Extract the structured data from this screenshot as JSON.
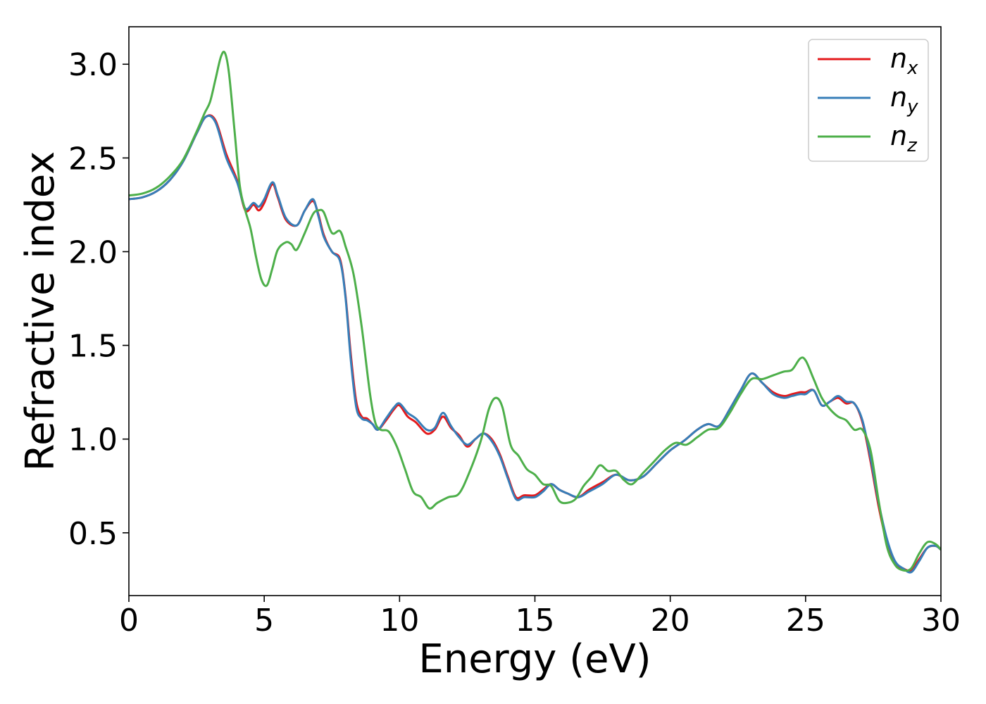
{
  "chart_data": {
    "type": "line",
    "xlabel": "Energy (eV)",
    "ylabel": "Refractive index",
    "xlim": [
      0,
      30
    ],
    "ylim": [
      0.165,
      3.2
    ],
    "xticks": [
      0,
      5,
      10,
      15,
      20,
      25,
      30
    ],
    "yticks": [
      0.5,
      1.0,
      1.5,
      2.0,
      2.5,
      3.0
    ],
    "xtick_labels": [
      "0",
      "5",
      "10",
      "15",
      "20",
      "25",
      "30"
    ],
    "ytick_labels": [
      "0.5",
      "1.0",
      "1.5",
      "2.0",
      "2.5",
      "3.0"
    ],
    "grid": false,
    "legend_position": "top-right",
    "series": [
      {
        "name": "n_x",
        "legend_main": "n",
        "legend_sub": "x",
        "color": "#e41a1c",
        "x": [
          0,
          0.5,
          1.0,
          1.5,
          2.0,
          2.5,
          2.85,
          3.2,
          3.6,
          4.0,
          4.3,
          4.6,
          4.8,
          5.0,
          5.3,
          5.5,
          5.8,
          6.2,
          6.5,
          6.8,
          7.0,
          7.2,
          7.5,
          7.8,
          8.0,
          8.2,
          8.4,
          8.6,
          8.8,
          9.0,
          9.2,
          9.5,
          9.8,
          10.0,
          10.3,
          10.6,
          11.0,
          11.3,
          11.6,
          11.9,
          12.2,
          12.5,
          12.8,
          13.1,
          13.4,
          13.7,
          14.0,
          14.3,
          14.6,
          15.0,
          15.3,
          15.6,
          15.9,
          16.2,
          16.6,
          17.0,
          17.5,
          18.0,
          18.5,
          19.0,
          19.5,
          20.0,
          20.5,
          21.0,
          21.4,
          21.8,
          22.2,
          22.6,
          23.0,
          23.4,
          23.8,
          24.2,
          24.5,
          24.8,
          25.0,
          25.3,
          25.6,
          25.9,
          26.2,
          26.5,
          26.8,
          27.1,
          27.4,
          27.7,
          28.0,
          28.3,
          28.6,
          28.9,
          29.2,
          29.5,
          29.8,
          30.0
        ],
        "y": [
          2.28,
          2.29,
          2.32,
          2.38,
          2.48,
          2.63,
          2.72,
          2.7,
          2.52,
          2.38,
          2.22,
          2.25,
          2.22,
          2.26,
          2.36,
          2.29,
          2.17,
          2.14,
          2.22,
          2.27,
          2.2,
          2.09,
          2.0,
          1.96,
          1.77,
          1.45,
          1.2,
          1.12,
          1.11,
          1.08,
          1.05,
          1.1,
          1.16,
          1.18,
          1.12,
          1.09,
          1.03,
          1.05,
          1.12,
          1.06,
          1.02,
          0.96,
          1.0,
          1.03,
          1.0,
          0.92,
          0.8,
          0.69,
          0.7,
          0.7,
          0.73,
          0.76,
          0.73,
          0.71,
          0.69,
          0.73,
          0.77,
          0.81,
          0.78,
          0.8,
          0.87,
          0.94,
          0.99,
          1.05,
          1.08,
          1.07,
          1.16,
          1.26,
          1.35,
          1.3,
          1.25,
          1.23,
          1.24,
          1.25,
          1.25,
          1.26,
          1.18,
          1.2,
          1.22,
          1.19,
          1.19,
          1.09,
          0.88,
          0.64,
          0.45,
          0.34,
          0.31,
          0.3,
          0.36,
          0.42,
          0.43,
          0.41
        ]
      },
      {
        "name": "n_y",
        "legend_main": "n",
        "legend_sub": "y",
        "color": "#377eb8",
        "x": [
          0,
          0.5,
          1.0,
          1.5,
          2.0,
          2.5,
          2.85,
          3.2,
          3.6,
          4.0,
          4.3,
          4.6,
          4.8,
          5.0,
          5.3,
          5.5,
          5.8,
          6.2,
          6.5,
          6.8,
          7.0,
          7.2,
          7.5,
          7.8,
          8.0,
          8.2,
          8.4,
          8.6,
          8.8,
          9.0,
          9.2,
          9.5,
          9.8,
          10.0,
          10.3,
          10.6,
          11.0,
          11.3,
          11.6,
          11.9,
          12.2,
          12.5,
          12.8,
          13.1,
          13.4,
          13.7,
          14.0,
          14.3,
          14.6,
          15.0,
          15.3,
          15.6,
          15.9,
          16.2,
          16.6,
          17.0,
          17.5,
          18.0,
          18.5,
          19.0,
          19.5,
          20.0,
          20.5,
          21.0,
          21.4,
          21.8,
          22.2,
          22.6,
          23.0,
          23.4,
          23.8,
          24.2,
          24.5,
          24.8,
          25.0,
          25.3,
          25.6,
          25.9,
          26.2,
          26.5,
          26.8,
          27.1,
          27.4,
          27.7,
          28.0,
          28.3,
          28.6,
          28.9,
          29.2,
          29.5,
          29.8,
          30.0
        ],
        "y": [
          2.28,
          2.29,
          2.32,
          2.38,
          2.48,
          2.63,
          2.72,
          2.69,
          2.5,
          2.37,
          2.23,
          2.26,
          2.24,
          2.28,
          2.37,
          2.3,
          2.18,
          2.14,
          2.22,
          2.28,
          2.19,
          2.08,
          2.0,
          1.95,
          1.76,
          1.42,
          1.17,
          1.11,
          1.1,
          1.08,
          1.05,
          1.11,
          1.17,
          1.19,
          1.14,
          1.11,
          1.05,
          1.06,
          1.14,
          1.07,
          1.01,
          0.97,
          1.0,
          1.03,
          0.99,
          0.91,
          0.79,
          0.68,
          0.69,
          0.69,
          0.72,
          0.76,
          0.73,
          0.71,
          0.69,
          0.72,
          0.76,
          0.81,
          0.78,
          0.8,
          0.87,
          0.94,
          0.99,
          1.05,
          1.08,
          1.07,
          1.16,
          1.26,
          1.35,
          1.3,
          1.24,
          1.22,
          1.23,
          1.24,
          1.24,
          1.26,
          1.18,
          1.2,
          1.23,
          1.2,
          1.19,
          1.1,
          0.9,
          0.66,
          0.47,
          0.35,
          0.31,
          0.29,
          0.35,
          0.42,
          0.43,
          0.41
        ]
      },
      {
        "name": "n_z",
        "legend_main": "n",
        "legend_sub": "z",
        "color": "#4daf4a",
        "x": [
          0,
          0.5,
          1.0,
          1.5,
          2.0,
          2.5,
          2.8,
          3.0,
          3.2,
          3.4,
          3.55,
          3.7,
          3.9,
          4.1,
          4.3,
          4.5,
          4.7,
          4.9,
          5.1,
          5.3,
          5.5,
          5.8,
          6.0,
          6.2,
          6.5,
          6.8,
          7.0,
          7.2,
          7.5,
          7.8,
          8.0,
          8.3,
          8.6,
          8.9,
          9.1,
          9.3,
          9.6,
          9.9,
          10.2,
          10.5,
          10.8,
          11.1,
          11.4,
          11.8,
          12.2,
          12.6,
          13.0,
          13.3,
          13.55,
          13.8,
          14.1,
          14.4,
          14.7,
          15.0,
          15.3,
          15.6,
          15.9,
          16.2,
          16.5,
          16.8,
          17.1,
          17.4,
          17.7,
          18.0,
          18.3,
          18.6,
          19.0,
          19.4,
          19.8,
          20.2,
          20.6,
          21.0,
          21.4,
          21.8,
          22.2,
          22.6,
          23.0,
          23.4,
          23.8,
          24.2,
          24.5,
          24.8,
          25.0,
          25.3,
          25.6,
          25.9,
          26.2,
          26.5,
          26.8,
          27.1,
          27.4,
          27.7,
          28.0,
          28.3,
          28.6,
          28.9,
          29.2,
          29.5,
          29.8,
          30.0
        ],
        "y": [
          2.3,
          2.31,
          2.34,
          2.4,
          2.49,
          2.64,
          2.74,
          2.8,
          2.92,
          3.04,
          3.06,
          2.95,
          2.65,
          2.35,
          2.22,
          2.12,
          1.97,
          1.85,
          1.82,
          1.91,
          2.01,
          2.05,
          2.04,
          2.01,
          2.1,
          2.2,
          2.22,
          2.21,
          2.1,
          2.11,
          2.03,
          1.88,
          1.6,
          1.25,
          1.09,
          1.05,
          1.04,
          0.96,
          0.84,
          0.72,
          0.69,
          0.63,
          0.66,
          0.69,
          0.71,
          0.83,
          0.99,
          1.16,
          1.22,
          1.17,
          0.97,
          0.91,
          0.84,
          0.81,
          0.76,
          0.75,
          0.67,
          0.66,
          0.68,
          0.75,
          0.8,
          0.86,
          0.83,
          0.83,
          0.78,
          0.76,
          0.82,
          0.88,
          0.94,
          0.98,
          0.97,
          1.01,
          1.05,
          1.06,
          1.14,
          1.24,
          1.32,
          1.32,
          1.34,
          1.36,
          1.37,
          1.43,
          1.42,
          1.32,
          1.22,
          1.16,
          1.12,
          1.1,
          1.05,
          1.05,
          0.94,
          0.67,
          0.43,
          0.33,
          0.3,
          0.31,
          0.39,
          0.45,
          0.44,
          0.41
        ]
      }
    ]
  }
}
